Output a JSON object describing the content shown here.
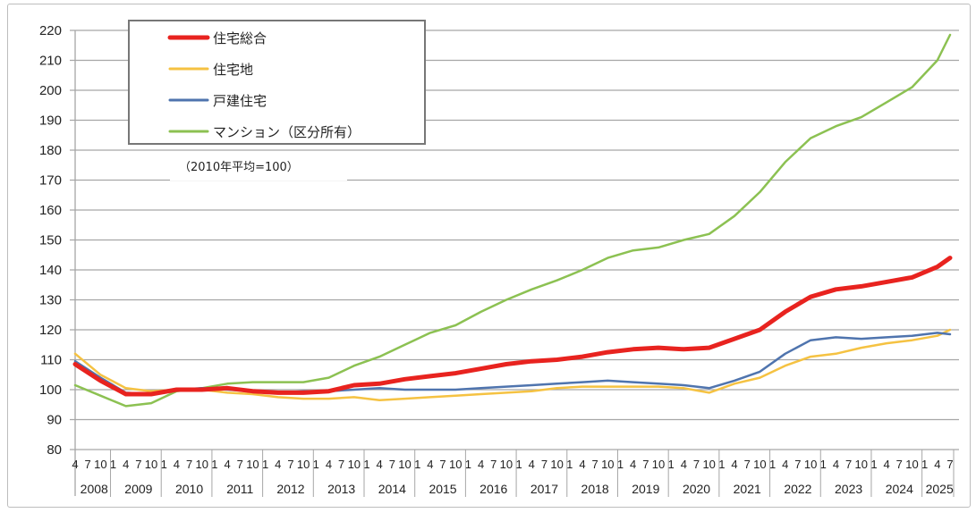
{
  "chart_data": {
    "type": "line",
    "title": "",
    "note": "（2010年平均=100）",
    "xlabel": "",
    "ylabel": "",
    "ylim": [
      80,
      220
    ],
    "yticks": [
      80,
      90,
      100,
      110,
      120,
      130,
      140,
      150,
      160,
      170,
      180,
      190,
      200,
      210,
      220
    ],
    "grid": true,
    "legend_position": "top-left (boxed)",
    "x_month_ticks": [
      "1",
      "4",
      "7",
      "10"
    ],
    "x_years": [
      "2008",
      "2009",
      "2010",
      "2011",
      "2012",
      "2013",
      "2014",
      "2015",
      "2016",
      "2017",
      "2018",
      "2019",
      "2020",
      "2021",
      "2022",
      "2023",
      "2024",
      "2025"
    ],
    "x_start": "2008-04",
    "x_end": "2025-07",
    "x_sample_points": [
      "2008-04",
      "2008-10",
      "2009-04",
      "2009-10",
      "2010-04",
      "2010-10",
      "2011-04",
      "2011-10",
      "2012-04",
      "2012-10",
      "2013-04",
      "2013-10",
      "2014-04",
      "2014-10",
      "2015-04",
      "2015-10",
      "2016-04",
      "2016-10",
      "2017-04",
      "2017-10",
      "2018-04",
      "2018-10",
      "2019-04",
      "2019-10",
      "2020-04",
      "2020-10",
      "2021-04",
      "2021-10",
      "2022-04",
      "2022-10",
      "2023-04",
      "2023-10",
      "2024-04",
      "2024-10",
      "2025-04",
      "2025-07"
    ],
    "series": [
      {
        "name": "住宅総合",
        "color": "#e8231f",
        "width": 5,
        "values": [
          108.5,
          103,
          98.5,
          98.5,
          100,
          100,
          100.5,
          99.5,
          99,
          99,
          99.5,
          101.5,
          102,
          103.5,
          104.5,
          105.5,
          107,
          108.5,
          109.5,
          110,
          111,
          112.5,
          113.5,
          114,
          113.5,
          114,
          117,
          120,
          126,
          131,
          133.5,
          134.5,
          136,
          137.5,
          141,
          144
        ]
      },
      {
        "name": "住宅地",
        "color": "#f5c242",
        "width": 2.5,
        "values": [
          112,
          105,
          100.5,
          99.5,
          100,
          100,
          99,
          98.5,
          97.5,
          97,
          97,
          97.5,
          96.5,
          97,
          97.5,
          98,
          98.5,
          99,
          99.5,
          100.5,
          101,
          101,
          101,
          101,
          100.5,
          99,
          102,
          104,
          108,
          111,
          112,
          114,
          115.5,
          116.5,
          118,
          120
        ]
      },
      {
        "name": "戸建住宅",
        "color": "#4f74ae",
        "width": 2.5,
        "values": [
          109.5,
          104,
          99,
          98.5,
          100,
          100.5,
          100,
          99.5,
          99,
          99.5,
          99.5,
          100,
          100.5,
          100,
          100,
          100,
          100.5,
          101,
          101.5,
          102,
          102.5,
          103,
          102.5,
          102,
          101.5,
          100.5,
          103,
          106,
          112,
          116.5,
          117.5,
          117,
          117.5,
          118,
          119,
          118.5
        ]
      },
      {
        "name": "マンション（区分所有）",
        "color": "#8cc152",
        "width": 2.5,
        "values": [
          101.5,
          98,
          94.5,
          95.5,
          99.5,
          100.5,
          102,
          102.5,
          102.5,
          102.5,
          104,
          108,
          111,
          115,
          119,
          121.5,
          126,
          130,
          133.5,
          136.5,
          140,
          144,
          146.5,
          147.5,
          150,
          152,
          158,
          166,
          176,
          184,
          188,
          191,
          196,
          201,
          210,
          218.5
        ]
      }
    ]
  },
  "legend": {
    "items": [
      {
        "label": "住宅総合",
        "color": "#e8231f"
      },
      {
        "label": "住宅地",
        "color": "#f5c242"
      },
      {
        "label": "戸建住宅",
        "color": "#4f74ae"
      },
      {
        "label": "マンション（区分所有）",
        "color": "#8cc152"
      }
    ]
  }
}
